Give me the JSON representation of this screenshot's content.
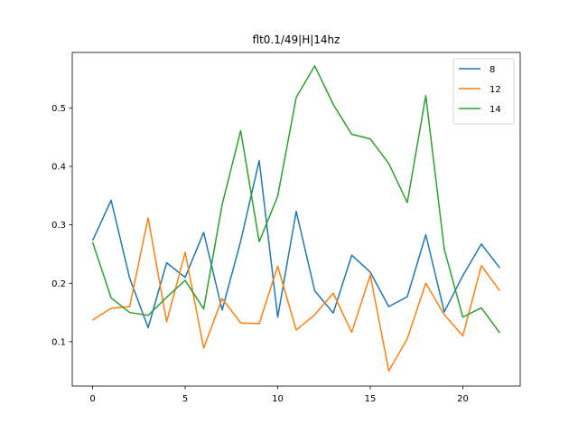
{
  "chart_data": {
    "type": "line",
    "title": "flt0.1/49|H|14hz",
    "xlabel": "",
    "ylabel": "",
    "x": [
      0,
      1,
      2,
      3,
      4,
      5,
      6,
      7,
      8,
      9,
      10,
      11,
      12,
      13,
      14,
      15,
      16,
      17,
      18,
      19,
      20,
      21,
      22
    ],
    "xlim": [
      -1.1,
      23.1
    ],
    "ylim": [
      0.024,
      0.595
    ],
    "xticks": [
      0,
      5,
      10,
      15,
      20
    ],
    "yticks": [
      0.1,
      0.2,
      0.3,
      0.4,
      0.5
    ],
    "legend_position": "top-right",
    "grid": false,
    "series": [
      {
        "name": "8",
        "color": "#1f77b4",
        "values": [
          0.273,
          0.342,
          0.209,
          0.124,
          0.235,
          0.21,
          0.287,
          0.154,
          0.272,
          0.41,
          0.142,
          0.323,
          0.187,
          0.149,
          0.248,
          0.219,
          0.16,
          0.177,
          0.283,
          0.151,
          0.213,
          0.267,
          0.226
        ]
      },
      {
        "name": "12",
        "color": "#ff7f0e",
        "values": [
          0.137,
          0.157,
          0.16,
          0.312,
          0.134,
          0.253,
          0.089,
          0.174,
          0.132,
          0.131,
          0.229,
          0.12,
          0.146,
          0.183,
          0.116,
          0.214,
          0.05,
          0.105,
          0.2,
          0.146,
          0.11,
          0.23,
          0.187
        ]
      },
      {
        "name": "14",
        "color": "#2ca02c",
        "values": [
          0.27,
          0.175,
          0.15,
          0.145,
          0.176,
          0.205,
          0.156,
          0.335,
          0.461,
          0.271,
          0.349,
          0.518,
          0.572,
          0.506,
          0.455,
          0.447,
          0.405,
          0.338,
          0.521,
          0.258,
          0.142,
          0.158,
          0.115
        ]
      }
    ]
  }
}
